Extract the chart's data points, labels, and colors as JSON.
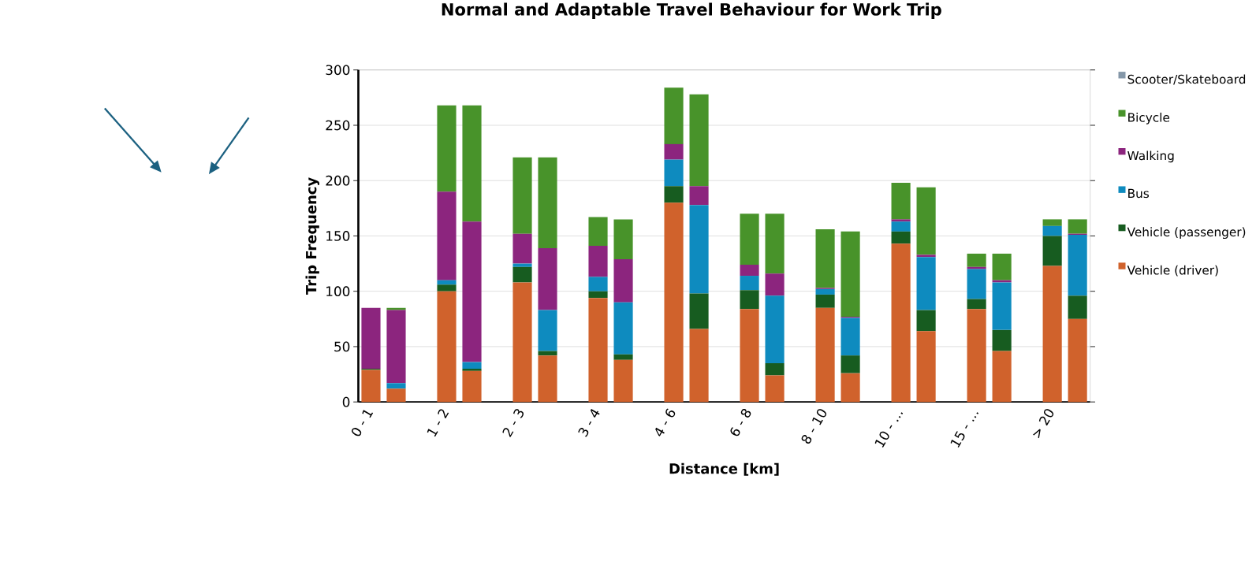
{
  "chart_data": {
    "type": "bar",
    "stacked": true,
    "title": "Normal and Adaptable Travel Behaviour for Work Trip",
    "xlabel": "Distance [km]",
    "ylabel": "Trip Frequency",
    "categories": [
      "0 - 1",
      null,
      null,
      "1 - 2",
      null,
      null,
      "2 - 3",
      null,
      null,
      "3 - 4",
      null,
      null,
      "4 - 6",
      null,
      null,
      "6 - 8",
      null,
      null,
      "8 - 10",
      null,
      null,
      "10 - ...",
      null,
      null,
      "15 - ...",
      null,
      null,
      "> 20",
      null
    ],
    "ylim": [
      0,
      300
    ],
    "yticks": [
      0,
      50,
      100,
      150,
      200,
      250,
      300
    ],
    "grid": "y",
    "legend": "right",
    "series": [
      {
        "name": "Vehicle (driver)",
        "color": "#d0622c",
        "values": [
          29,
          12,
          null,
          100,
          28,
          null,
          108,
          42,
          null,
          94,
          38,
          null,
          180,
          66,
          null,
          84,
          24,
          null,
          85,
          26,
          null,
          143,
          64,
          null,
          84,
          46,
          null,
          123,
          75
        ]
      },
      {
        "name": "Vehicle (passenger)",
        "color": "#175c20",
        "values": [
          1,
          0,
          null,
          6,
          2,
          null,
          14,
          4,
          null,
          6,
          5,
          null,
          15,
          32,
          null,
          17,
          11,
          null,
          12,
          16,
          null,
          11,
          19,
          null,
          9,
          19,
          null,
          27,
          21
        ]
      },
      {
        "name": "Bus",
        "color": "#0e8bbf",
        "values": [
          0,
          5,
          null,
          4,
          6,
          null,
          3,
          37,
          null,
          13,
          47,
          null,
          24,
          80,
          null,
          13,
          61,
          null,
          5,
          34,
          null,
          9,
          48,
          null,
          27,
          43,
          null,
          9,
          55
        ]
      },
      {
        "name": "Walking",
        "color": "#8c257e",
        "values": [
          55,
          66,
          null,
          80,
          127,
          null,
          27,
          56,
          null,
          28,
          39,
          null,
          14,
          17,
          null,
          10,
          20,
          null,
          1,
          1,
          null,
          2,
          2,
          null,
          2,
          2,
          null,
          0,
          1
        ]
      },
      {
        "name": "Bicycle",
        "color": "#48932a",
        "values": [
          0,
          2,
          null,
          78,
          105,
          null,
          69,
          82,
          null,
          26,
          36,
          null,
          51,
          83,
          null,
          46,
          54,
          null,
          53,
          77,
          null,
          33,
          61,
          null,
          12,
          24,
          null,
          6,
          13
        ]
      },
      {
        "name": "Scooter/Skateboard",
        "color": "#8497a8",
        "values": [
          0,
          0,
          null,
          0,
          0,
          null,
          0,
          0,
          null,
          0,
          0,
          null,
          0,
          0,
          null,
          0,
          0,
          null,
          0,
          0,
          null,
          0,
          0,
          null,
          0,
          0,
          null,
          0,
          0
        ]
      }
    ]
  }
}
